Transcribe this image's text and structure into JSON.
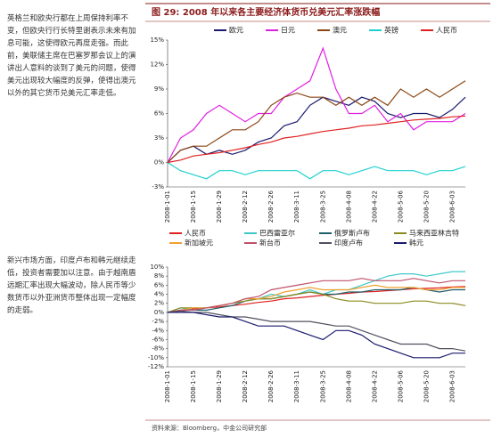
{
  "left_text": [
    "英格兰和欧央行都在上周保持利率不变，但欧央行行长特里谢表示未来有加息可能，这使得欧元再度走强。而此前，美联储主席在巴塞罗那会议上的演讲出人意料的谈到了美元的问题，使得美元出现较大幅度的反弹，使得出澳元以外的其它货币兑美元汇率走低。",
    "新兴市场方面，印度卢布和韩元继续走低，投资者需要加以注意。由于越南盾远期汇率出现大幅波动，除人民币等少数货币以外亚洲货币整体出现一定幅度的走弱。"
  ],
  "figure_title": "图 29:  2008 年以来各主要经济体货币兑美元汇率涨跌幅",
  "source": "资料来源：Bloomberg，中金公司研究部",
  "chart_data": [
    {
      "type": "line",
      "legend": "top",
      "categories": [
        "2008-1-01",
        null,
        "2008-1-15",
        null,
        "2008-1-29",
        null,
        "2008-2-12",
        null,
        "2008-2-26",
        null,
        "2008-3-11",
        null,
        "2008-3-25",
        null,
        "2008-4-08",
        null,
        "2008-4-22",
        null,
        "2008-5-06",
        null,
        "2008-5-20",
        null,
        "2008-6-03",
        null
      ],
      "ylim": [
        -3,
        15
      ],
      "yticks": [
        {
          "value": 15,
          "label": "15%"
        },
        {
          "value": 12,
          "label": "12%"
        },
        {
          "value": 9,
          "label": "9%"
        },
        {
          "value": 6,
          "label": "6%"
        },
        {
          "value": 3,
          "label": "3%"
        },
        {
          "value": 0,
          "label": "0%"
        },
        {
          "value": -3,
          "label": "-3%"
        }
      ],
      "series": [
        {
          "name": "欧元",
          "color": "#1a1a6e",
          "values": [
            0,
            1.5,
            2,
            1,
            1.5,
            1,
            1.5,
            2.5,
            3,
            4.5,
            5,
            7,
            8,
            7.5,
            7,
            8,
            7.5,
            6,
            5.5,
            6,
            6,
            5.5,
            6.5,
            8
          ]
        },
        {
          "name": "日元",
          "color": "#e020e0",
          "values": [
            0,
            3,
            4,
            6,
            7,
            6,
            5,
            6,
            6,
            8,
            9,
            10,
            14,
            9,
            6,
            6,
            7,
            5,
            6,
            4,
            5,
            5,
            5,
            6
          ]
        },
        {
          "name": "澳元",
          "color": "#8b4513",
          "values": [
            0,
            1.5,
            2,
            2,
            3,
            4,
            4,
            5,
            7,
            8,
            8.5,
            8,
            8,
            7,
            8,
            7,
            8,
            7,
            9,
            8,
            9,
            8,
            9,
            10
          ]
        },
        {
          "name": "英镑",
          "color": "#20d0d0",
          "values": [
            0,
            -1,
            -1.5,
            -2,
            -1,
            -1,
            -1.5,
            -1,
            -1,
            -1,
            -1,
            -2,
            -1,
            -1,
            -1.5,
            -1,
            -0.5,
            -1,
            -1,
            -1,
            -1.5,
            -1,
            -1,
            -0.5
          ]
        },
        {
          "name": "人民币",
          "color": "#e02020",
          "values": [
            0,
            0.3,
            0.8,
            1,
            1.2,
            1.5,
            1.8,
            2.2,
            2.5,
            3,
            3.2,
            3.5,
            3.8,
            4,
            4.2,
            4.5,
            4.6,
            4.8,
            5,
            5.2,
            5.3,
            5.4,
            5.6,
            5.7
          ]
        }
      ]
    },
    {
      "type": "line",
      "legend": "top",
      "categories": [
        "2008-1-01",
        null,
        "2008-1-15",
        null,
        "2008-1-29",
        null,
        "2008-2-12",
        null,
        "2008-2-26",
        null,
        "2008-3-11",
        null,
        "2008-3-25",
        null,
        "2008-4-08",
        null,
        "2008-4-22",
        null,
        "2008-5-06",
        null,
        "2008-5-20",
        null,
        "2008-6-03",
        null
      ],
      "ylim": [
        -12,
        10
      ],
      "yticks": [
        {
          "value": 10,
          "label": "10%"
        },
        {
          "value": 8,
          "label": "8%"
        },
        {
          "value": 6,
          "label": "6%"
        },
        {
          "value": 4,
          "label": "4%"
        },
        {
          "value": 2,
          "label": "2%"
        },
        {
          "value": 0,
          "label": "0%"
        },
        {
          "value": -2,
          "label": "-2%"
        },
        {
          "value": -4,
          "label": "-4%"
        },
        {
          "value": -6,
          "label": "-6%"
        },
        {
          "value": -8,
          "label": "-8%"
        },
        {
          "value": -10,
          "label": "-10%"
        },
        {
          "value": -12,
          "label": "-12%"
        }
      ],
      "series": [
        {
          "name": "人民币",
          "color": "#e02020",
          "values": [
            0,
            0.3,
            0.8,
            1,
            1.2,
            1.5,
            1.8,
            2.2,
            2.5,
            3,
            3.2,
            3.5,
            3.8,
            4,
            4.2,
            4.5,
            4.6,
            4.8,
            5,
            5.2,
            5.3,
            5.4,
            5.6,
            5.7
          ]
        },
        {
          "name": "巴西雷亚尔",
          "color": "#40c8c8",
          "values": [
            0,
            1,
            0.5,
            1,
            1.5,
            2,
            3,
            3,
            4,
            3.5,
            4,
            5,
            4,
            5,
            5,
            6,
            7,
            8,
            8.5,
            8.5,
            8,
            8.5,
            9,
            9
          ]
        },
        {
          "name": "俄罗斯卢布",
          "color": "#1f5f6a",
          "values": [
            0,
            0.5,
            0.5,
            0.5,
            1,
            1.5,
            2.5,
            3,
            3,
            3.5,
            4,
            4.5,
            4,
            4,
            4.5,
            4.5,
            5,
            5,
            5,
            5.5,
            5,
            4.5,
            5,
            5
          ]
        },
        {
          "name": "马来西亚林吉特",
          "color": "#8a8a20",
          "values": [
            0,
            1,
            1,
            1,
            1.5,
            2,
            2.5,
            3,
            3,
            3.5,
            4,
            4.5,
            4,
            3,
            2.5,
            2.5,
            2,
            2,
            2,
            2.5,
            2.5,
            2,
            2,
            1.5
          ]
        },
        {
          "name": "新加坡元",
          "color": "#f0a030",
          "values": [
            0,
            0.5,
            1,
            1,
            1.5,
            2,
            3,
            3,
            3.5,
            4.5,
            5,
            5.5,
            5,
            5,
            5,
            5.5,
            6,
            5.5,
            5.5,
            5.5,
            5,
            5,
            5.5,
            5.5
          ]
        },
        {
          "name": "新台币",
          "color": "#c0506a",
          "values": [
            0,
            0.5,
            0.5,
            1,
            1.5,
            2,
            3,
            3.5,
            5,
            5.5,
            6,
            6.5,
            7,
            7,
            7,
            7.5,
            7,
            7,
            7,
            7.5,
            7,
            6.5,
            7,
            7
          ]
        },
        {
          "name": "印度卢布",
          "color": "#505060",
          "values": [
            0,
            0.3,
            0,
            0,
            -0.5,
            -1,
            -1,
            -1.5,
            -2,
            -2,
            -2,
            -2,
            -2.5,
            -3,
            -3,
            -4,
            -5,
            -6,
            -7,
            -7,
            -7,
            -8,
            -8,
            -8.5
          ]
        },
        {
          "name": "韩元",
          "color": "#1a1a6e",
          "values": [
            0,
            0,
            0,
            -0.5,
            -1,
            -1,
            -2,
            -3,
            -3,
            -3,
            -4,
            -5,
            -6,
            -4,
            -4,
            -5,
            -7,
            -8,
            -9,
            -10,
            -10,
            -10,
            -9,
            -9
          ]
        }
      ]
    }
  ]
}
